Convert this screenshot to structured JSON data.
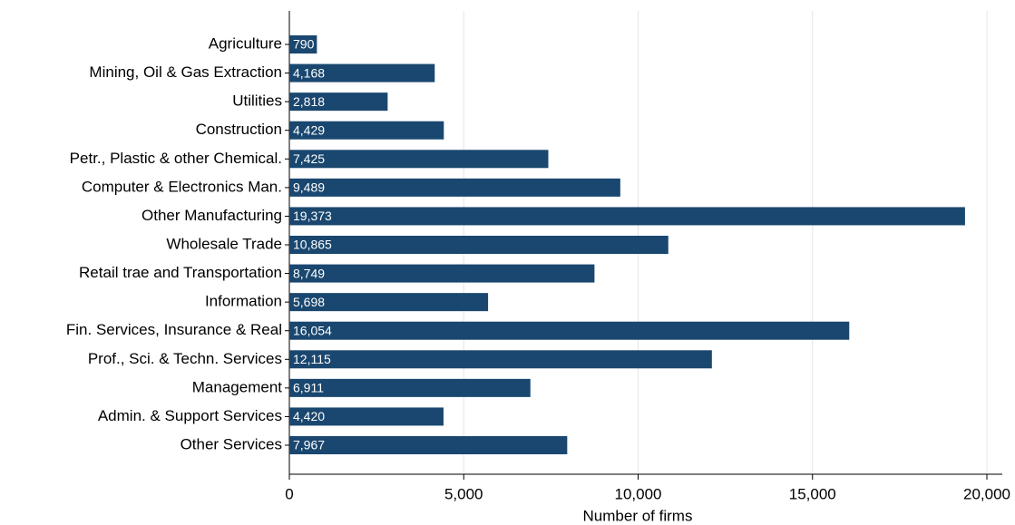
{
  "chart_data": {
    "type": "bar",
    "orientation": "horizontal",
    "x_label": "Number of firms",
    "categories": [
      "Agriculture",
      "Mining, Oil & Gas Extraction",
      "Utilities",
      "Construction",
      "Petr., Plastic & other Chemical.",
      "Computer & Electronics Man.",
      "Other Manufacturing",
      "Wholesale Trade",
      "Retail trae and Transportation",
      "Information",
      "Fin. Services, Insurance & Real",
      "Prof., Sci. & Techn. Services",
      "Management",
      "Admin. & Support Services",
      "Other Services"
    ],
    "values": [
      790,
      4168,
      2818,
      4429,
      7425,
      9489,
      19373,
      10865,
      8749,
      5698,
      16054,
      12115,
      6911,
      4420,
      7967
    ],
    "value_labels": [
      "790",
      "4,168",
      "2,818",
      "4,429",
      "7,425",
      "9,489",
      "19,373",
      "10,865",
      "8,749",
      "5,698",
      "16,054",
      "12,115",
      "6,911",
      "4,420",
      "7,967"
    ],
    "color": "#1a476f",
    "xlim": [
      0,
      20000
    ],
    "xticks": [
      0,
      {
        "value": 5000,
        "label": "5,000"
      },
      {
        "value": 10000,
        "label": "10,000"
      },
      {
        "value": 15000,
        "label": "15,000"
      },
      {
        "value": 20000,
        "label": "20,000"
      }
    ],
    "grid": true
  }
}
